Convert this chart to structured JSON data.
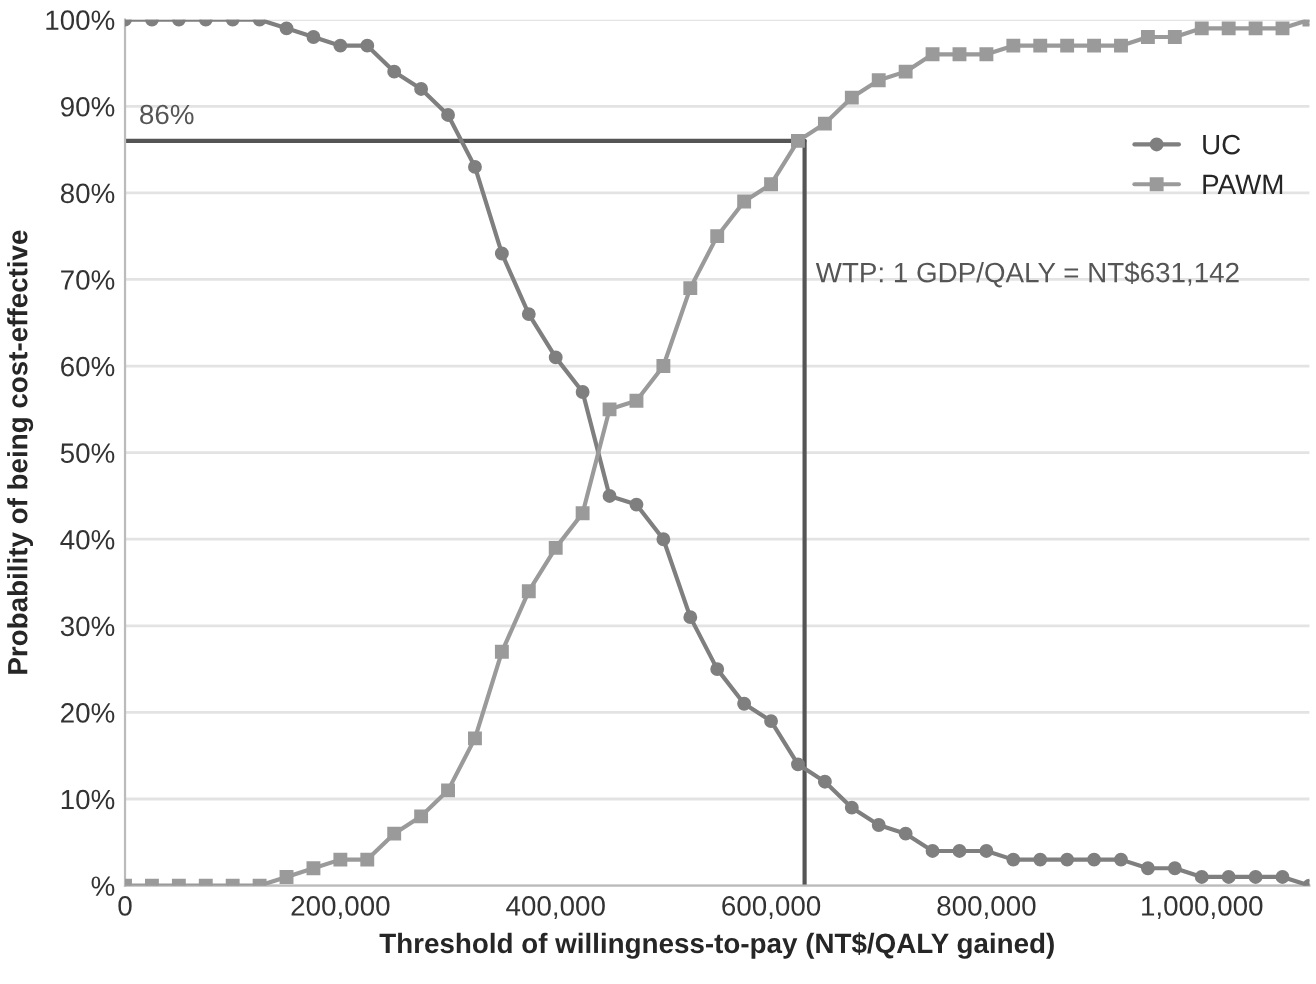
{
  "chart_data": {
    "type": "line",
    "xlabel": "Threshold of willingness-to-pay (NT$/QALY gained)",
    "ylabel": "Probability of being cost-effective",
    "x": [
      0,
      25000,
      50000,
      75000,
      100000,
      125000,
      150000,
      175000,
      200000,
      225000,
      250000,
      275000,
      300000,
      325000,
      350000,
      375000,
      400000,
      425000,
      450000,
      475000,
      500000,
      525000,
      550000,
      575000,
      600000,
      625000,
      650000,
      675000,
      700000,
      725000,
      750000,
      775000,
      800000,
      825000,
      850000,
      875000,
      900000,
      925000,
      950000,
      975000,
      1000000,
      1025000,
      1050000,
      1075000,
      1100000
    ],
    "series": [
      {
        "name": "UC",
        "color": "#7f7f7f",
        "marker": "circle",
        "values": [
          100,
          100,
          100,
          100,
          100,
          100,
          99,
          98,
          97,
          97,
          94,
          92,
          89,
          83,
          73,
          66,
          61,
          57,
          45,
          44,
          40,
          31,
          25,
          21,
          19,
          14,
          12,
          9,
          7,
          6,
          4,
          4,
          4,
          3,
          3,
          3,
          3,
          3,
          2,
          2,
          1,
          1,
          1,
          1,
          0
        ]
      },
      {
        "name": "PAWM",
        "color": "#9a9a9a",
        "marker": "square",
        "values": [
          0,
          0,
          0,
          0,
          0,
          0,
          1,
          2,
          3,
          3,
          6,
          8,
          11,
          17,
          27,
          34,
          39,
          43,
          55,
          56,
          60,
          69,
          75,
          79,
          81,
          86,
          88,
          91,
          93,
          94,
          96,
          96,
          96,
          97,
          97,
          97,
          97,
          97,
          98,
          98,
          99,
          99,
          99,
          99,
          100
        ]
      }
    ],
    "xlim": [
      0,
      1100000
    ],
    "xticks": [
      {
        "value": 0,
        "label": "0"
      },
      {
        "value": 200000,
        "label": "200,000"
      },
      {
        "value": 400000,
        "label": "400,000"
      },
      {
        "value": 600000,
        "label": "600,000"
      },
      {
        "value": 800000,
        "label": "800,000"
      },
      {
        "value": 1000000,
        "label": "1,000,000"
      }
    ],
    "ylim": [
      0,
      100
    ],
    "yticks": [
      {
        "value": 0,
        "label": "%"
      },
      {
        "value": 10,
        "label": "10%"
      },
      {
        "value": 20,
        "label": "20%"
      },
      {
        "value": 30,
        "label": "30%"
      },
      {
        "value": 40,
        "label": "40%"
      },
      {
        "value": 50,
        "label": "50%"
      },
      {
        "value": 60,
        "label": "60%"
      },
      {
        "value": 70,
        "label": "70%"
      },
      {
        "value": 80,
        "label": "80%"
      },
      {
        "value": 90,
        "label": "90%"
      },
      {
        "value": 100,
        "label": "100%"
      }
    ],
    "ref_lines": [
      {
        "axis": "y",
        "value": 86,
        "label": "86%",
        "color": "#555555"
      },
      {
        "axis": "x",
        "value": 631142,
        "label": "WTP: 1 GDP/QALY = NT$631,142",
        "color": "#555555"
      }
    ],
    "grid": "y",
    "legend": "right"
  }
}
